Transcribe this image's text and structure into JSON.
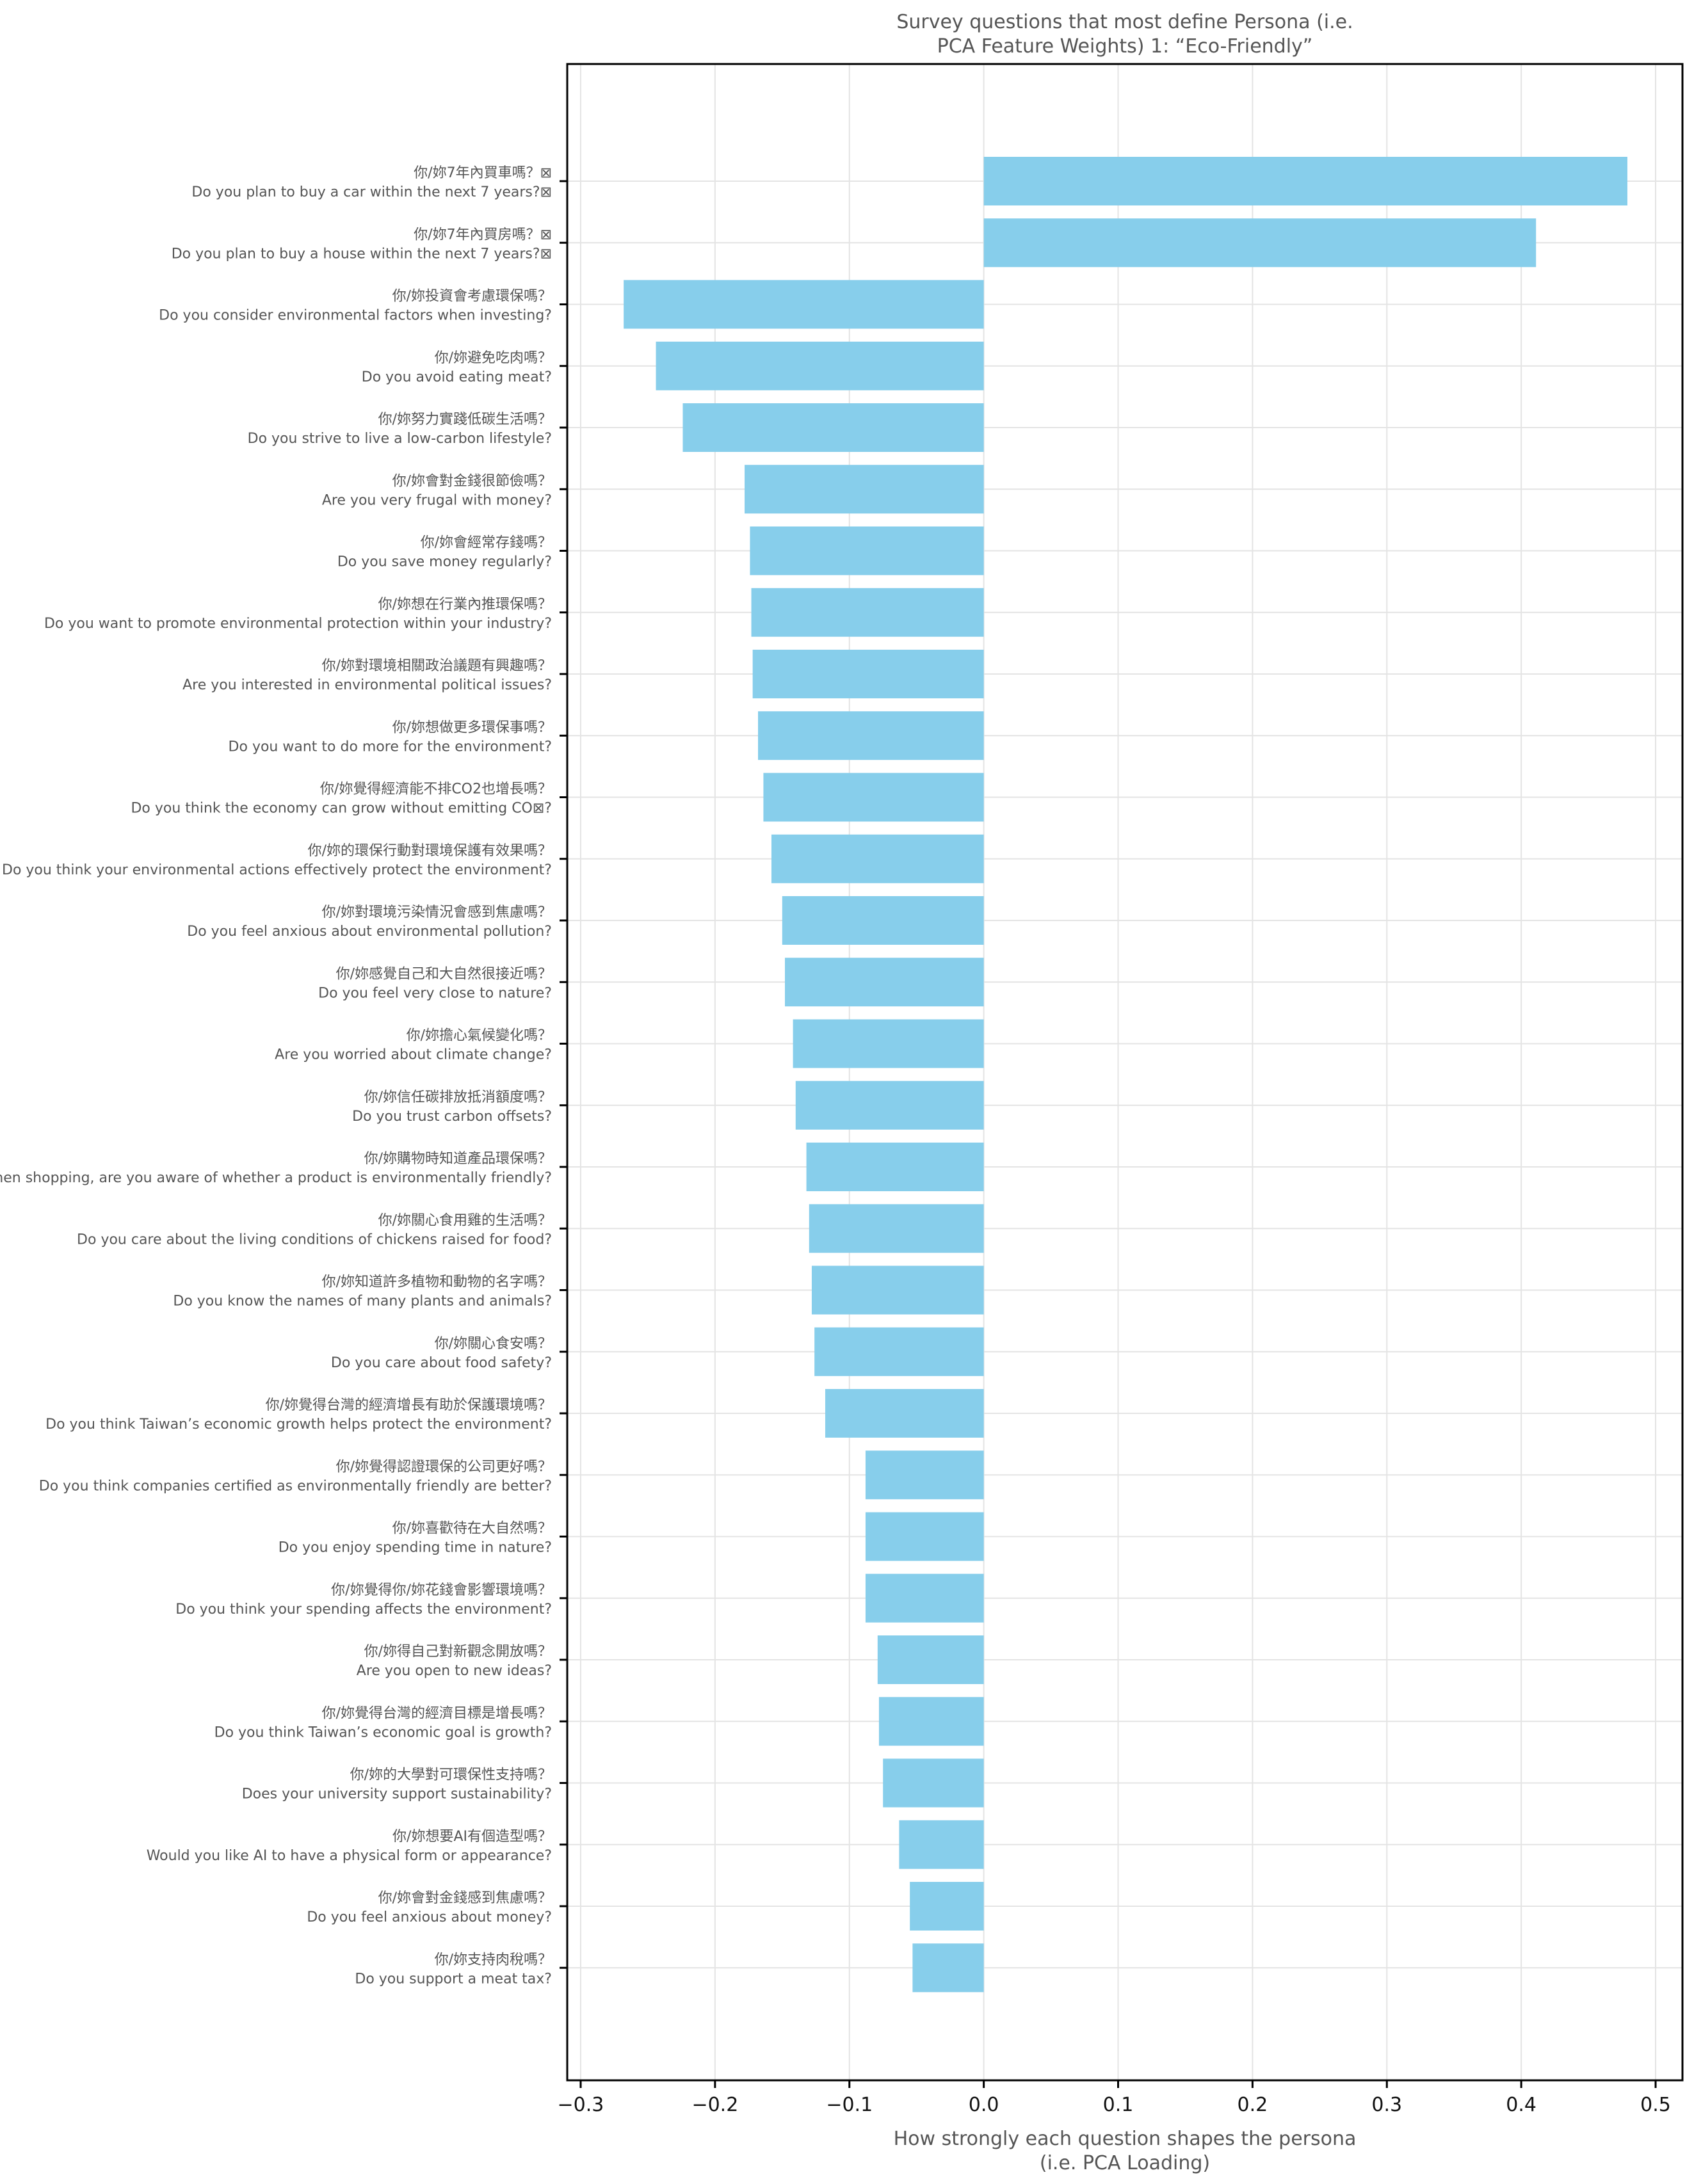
{
  "chart_data": {
    "type": "bar",
    "orientation": "horizontal",
    "title": "Survey questions that most define Persona (i.e.\nPCA Feature Weights) 1: “Eco-Friendly”",
    "xlabel": "How strongly each question shapes the persona\n(i.e. PCA Loading)",
    "ylabel": "",
    "xlim": [
      -0.31,
      0.52
    ],
    "xticks": [
      -0.3,
      -0.2,
      -0.1,
      0.0,
      0.1,
      0.2,
      0.3,
      0.4,
      0.5
    ],
    "xtick_labels": [
      "−0.3",
      "−0.2",
      "−0.1",
      "0.0",
      "0.1",
      "0.2",
      "0.3",
      "0.4",
      "0.5"
    ],
    "grid": true,
    "bar_color": "#87ceeb",
    "categories": [
      "你/妳7年內買車嗎？⊠\nDo you plan to buy a car within the next 7 years?⊠",
      "你/妳7年內買房嗎？⊠\nDo you plan to buy a house within the next 7 years?⊠",
      "你/妳投資會考慮環保嗎？\nDo you consider environmental factors when investing?",
      "你/妳避免吃肉嗎？\nDo you avoid eating meat?",
      "你/妳努力實踐低碳生活嗎？\nDo you strive to live a low-carbon lifestyle?",
      "你/妳會對金錢很節儉嗎？\nAre you very frugal with money?",
      "你/妳會經常存錢嗎？\nDo you save money regularly?",
      "你/妳想在行業內推環保嗎？\nDo you want to promote environmental protection within your industry?",
      "你/妳對環境相關政治議題有興趣嗎？\nAre you interested in environmental political issues?",
      "你/妳想做更多環保事嗎？\nDo you want to do more for the environment?",
      "你/妳覺得經濟能不排CO2也增長嗎？\nDo you think the economy can grow without emitting CO⊠?",
      "你/妳的環保行動對環境保護有效果嗎？\nDo you think your environmental actions effectively protect the environment?",
      "你/妳對環境污染情況會感到焦慮嗎？\nDo you feel anxious about environmental pollution?",
      "你/妳感覺自己和大自然很接近嗎？\nDo you feel very close to nature?",
      "你/妳擔心氣候變化嗎？\nAre you worried about climate change?",
      "你/妳信任碳排放抵消額度嗎？\nDo you trust carbon offsets?",
      "你/妳購物時知道產品環保嗎？\nWhen shopping, are you aware of whether a product is environmentally friendly?",
      "你/妳關心食用雞的生活嗎？\nDo you care about the living conditions of chickens raised for food?",
      "你/妳知道許多植物和動物的名字嗎？\nDo you know the names of many plants and animals?",
      "你/妳關心食安嗎？\nDo you care about food safety?",
      "你/妳覺得台灣的經濟增長有助於保護環境嗎？\nDo you think Taiwan’s economic growth helps protect the environment?",
      "你/妳覺得認證環保的公司更好嗎？\nDo you think companies certified as environmentally friendly are better?",
      "你/妳喜歡待在大自然嗎？\nDo you enjoy spending time in nature?",
      "你/妳覺得你/妳花錢會影響環境嗎？\nDo you think your spending affects the environment?",
      "你/妳得自己對新觀念開放嗎？\nAre you open to new ideas?",
      "你/妳覺得台灣的經濟目標是增長嗎？\nDo you think Taiwan’s economic goal is growth?",
      "你/妳的大學對可環保性支持嗎？\nDoes your university support sustainability?",
      "你/妳想要AI有個造型嗎？\nWould you like AI to have a physical form or appearance?",
      "你/妳會對金錢感到焦慮嗎？\nDo you feel anxious about money?",
      "你/妳支持肉稅嗎？\nDo you support a meat tax?"
    ],
    "values": [
      0.479,
      0.411,
      -0.268,
      -0.244,
      -0.224,
      -0.178,
      -0.174,
      -0.173,
      -0.172,
      -0.168,
      -0.164,
      -0.158,
      -0.15,
      -0.148,
      -0.142,
      -0.14,
      -0.132,
      -0.13,
      -0.128,
      -0.126,
      -0.118,
      -0.088,
      -0.088,
      -0.088,
      -0.079,
      -0.078,
      -0.075,
      -0.063,
      -0.055,
      -0.053
    ]
  }
}
